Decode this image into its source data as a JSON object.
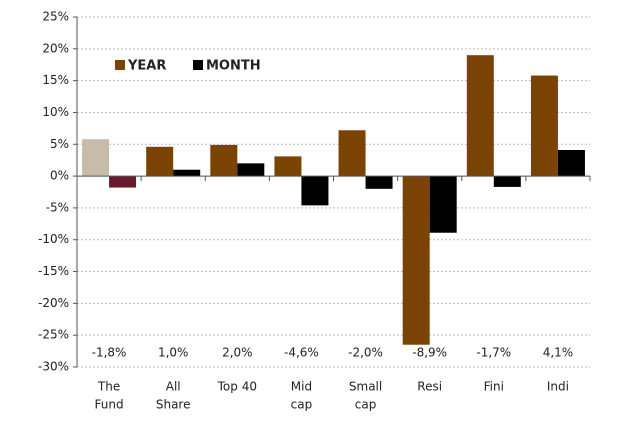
{
  "chart_data": {
    "type": "bar",
    "categories": [
      [
        "The",
        "Fund"
      ],
      [
        "All",
        "Share"
      ],
      "Top 40",
      [
        "Mid",
        "cap"
      ],
      [
        "Small",
        "cap"
      ],
      "Resi",
      "Fini",
      "Indi"
    ],
    "series": [
      {
        "name": "YEAR",
        "color": "#7b4303",
        "colors": [
          "#c9bba9",
          "#7b4303",
          "#7b4303",
          "#7b4303",
          "#7b4303",
          "#7b4303",
          "#7b4303",
          "#7b4303"
        ],
        "values": [
          5.8,
          4.6,
          4.9,
          3.1,
          7.2,
          -26.5,
          19.0,
          15.8
        ]
      },
      {
        "name": "MONTH",
        "color": "#000000",
        "colors": [
          "#6b1a2e",
          "#000000",
          "#000000",
          "#000000",
          "#000000",
          "#000000",
          "#000000",
          "#000000"
        ],
        "values": [
          -1.8,
          1.0,
          2.0,
          -4.6,
          -2.0,
          -8.9,
          -1.7,
          4.1
        ],
        "value_labels": [
          "-1,8%",
          "1,0%",
          "2,0%",
          "-4,6%",
          "-2,0%",
          "-8,9%",
          "-1,7%",
          "4,1%"
        ]
      }
    ],
    "ylim": [
      -30,
      25
    ],
    "yticks": [
      {
        "value": -30,
        "label": "-30%"
      },
      {
        "value": -25,
        "label": "-25%"
      },
      {
        "value": -20,
        "label": "-20%"
      },
      {
        "value": -15,
        "label": "-15%"
      },
      {
        "value": -10,
        "label": "-10%"
      },
      {
        "value": -5,
        "label": "-5%"
      },
      {
        "value": 0,
        "label": "0%"
      },
      {
        "value": 5,
        "label": "5%"
      },
      {
        "value": 10,
        "label": "10%"
      },
      {
        "value": 15,
        "label": "15%"
      },
      {
        "value": 20,
        "label": "20%"
      },
      {
        "value": 25,
        "label": "25%"
      }
    ],
    "grid": true,
    "legend": "upper left"
  }
}
